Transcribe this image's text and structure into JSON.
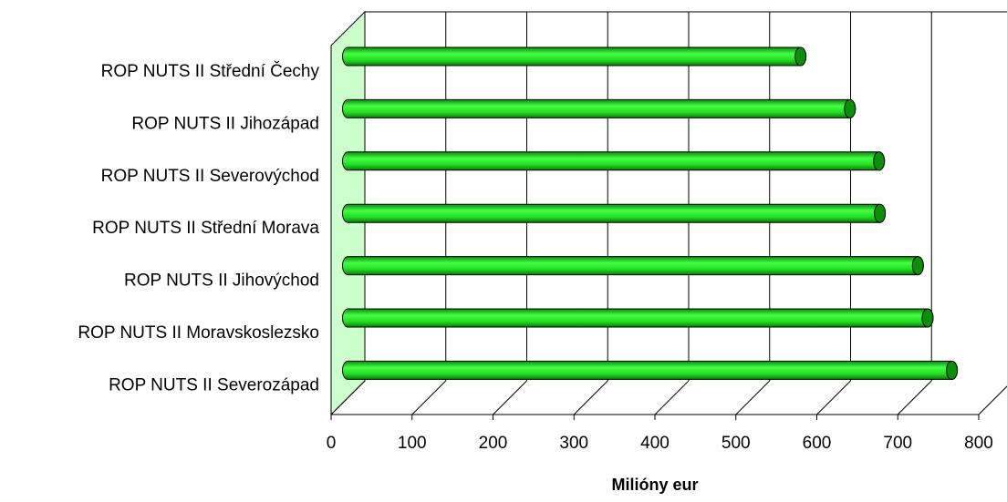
{
  "chart_data": {
    "type": "bar",
    "orientation": "horizontal",
    "categories": [
      "ROP NUTS II Střední Čechy",
      "ROP NUTS II Jihozápad",
      "ROP NUTS II Severovýchod",
      "ROP NUTS II Střední Morava",
      "ROP NUTS II Jihovýchod",
      "ROP NUTS II Moravskoslezsko",
      "ROP NUTS II Severozápad"
    ],
    "values": [
      559,
      620,
      656,
      657,
      704,
      716,
      746
    ],
    "color": "#22dd22",
    "xlabel": "Milióny eur",
    "xlim": [
      0,
      800
    ],
    "xticks": [
      0,
      100,
      200,
      300,
      400,
      500,
      600,
      700,
      800
    ],
    "grid": true
  }
}
